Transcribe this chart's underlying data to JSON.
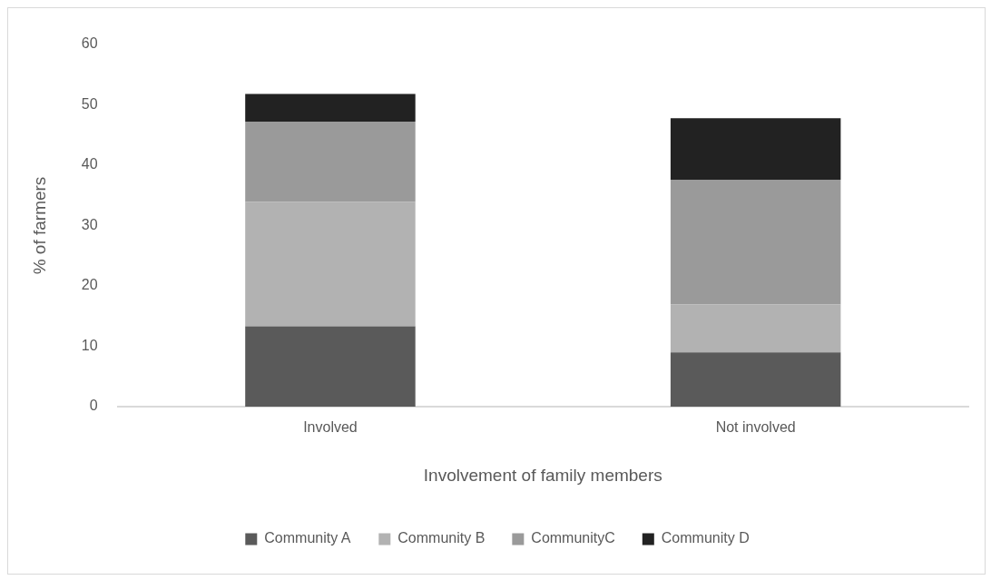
{
  "chart_data": {
    "type": "bar",
    "stacked": true,
    "xlabel": "Involvement of family members",
    "ylabel": "% of farmers",
    "categories": [
      "Involved",
      "Not involved"
    ],
    "series": [
      {
        "name": "Community A",
        "color": "#5a5a5a",
        "values": [
          13.3,
          9.0
        ]
      },
      {
        "name": "Community B",
        "color": "#b2b2b2",
        "values": [
          20.6,
          7.9
        ]
      },
      {
        "name": "CommunityC",
        "color": "#9a9a9a",
        "values": [
          13.3,
          20.7
        ]
      },
      {
        "name": "Community D",
        "color": "#222222",
        "values": [
          4.6,
          10.2
        ]
      }
    ],
    "ylim": [
      0,
      60
    ],
    "yticks": [
      0,
      10,
      20,
      30,
      40,
      50,
      60
    ],
    "grid": false,
    "legend": "bottom"
  }
}
